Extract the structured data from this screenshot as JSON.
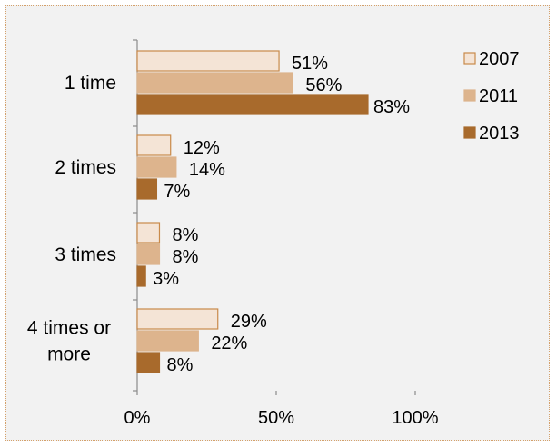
{
  "chart_data": {
    "type": "bar",
    "orientation": "horizontal",
    "categories": [
      "1 time",
      "2 times",
      "3 times",
      "4 times or more"
    ],
    "series": [
      {
        "name": "2007",
        "values": [
          51,
          12,
          8,
          29
        ],
        "color": "#f4e4d6",
        "stroke": "#c98a4a"
      },
      {
        "name": "2011",
        "values": [
          56,
          14,
          8,
          22
        ],
        "color": "#ddb48d",
        "stroke": "#ddb48d"
      },
      {
        "name": "2013",
        "values": [
          83,
          7,
          3,
          8
        ],
        "color": "#a86a2c",
        "stroke": "#a86a2c"
      }
    ],
    "value_suffix": "%",
    "xlim": [
      0,
      100
    ],
    "xticks": [
      0,
      50,
      100
    ],
    "xtick_labels": [
      "0%",
      "50%",
      "100%"
    ],
    "grid": false,
    "legend_position": "right",
    "background": "#f2f2f2",
    "border_color": "#d4a06a"
  }
}
